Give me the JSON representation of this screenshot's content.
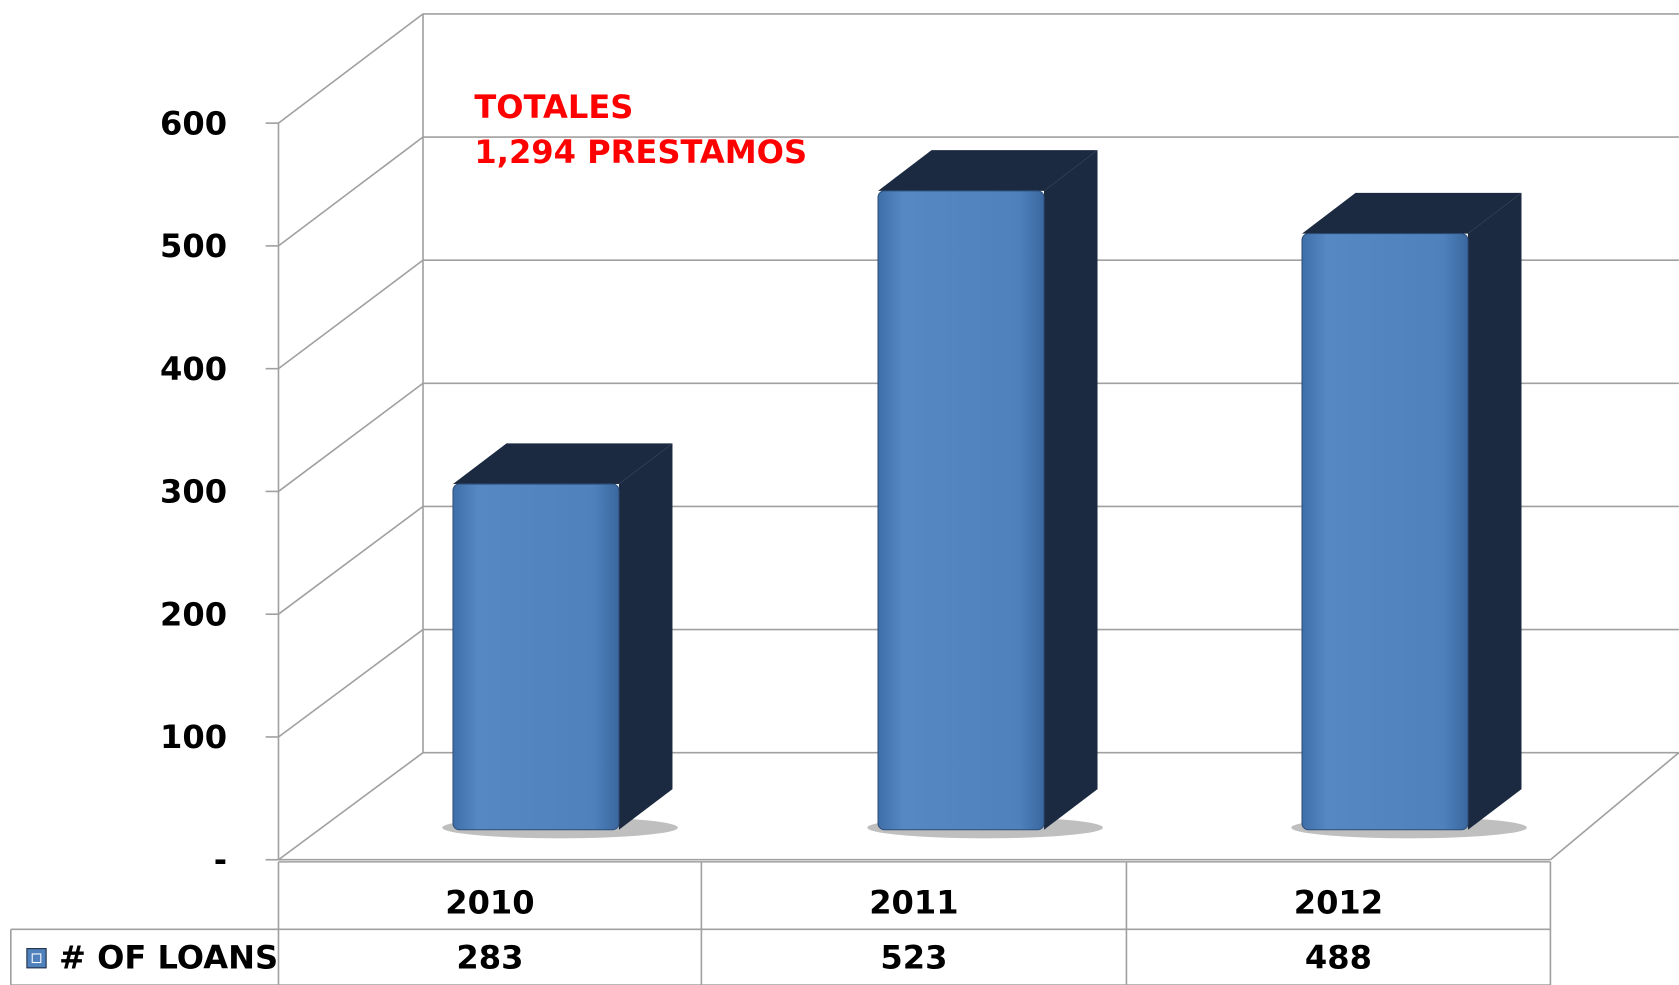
{
  "chart_data": {
    "type": "bar",
    "annotations": [
      "TOTALES",
      "1,294 PRESTAMOS"
    ],
    "categories": [
      "2010",
      "2011",
      "2012"
    ],
    "series": [
      {
        "name": "# OF LOANS",
        "color": "#4f81bd",
        "values": [
          283,
          523,
          488
        ]
      }
    ],
    "ylim": [
      0,
      600
    ],
    "yticks": [
      {
        "value": 0,
        "label": "-"
      },
      100,
      200,
      300,
      400,
      500,
      600
    ],
    "grid": true
  }
}
